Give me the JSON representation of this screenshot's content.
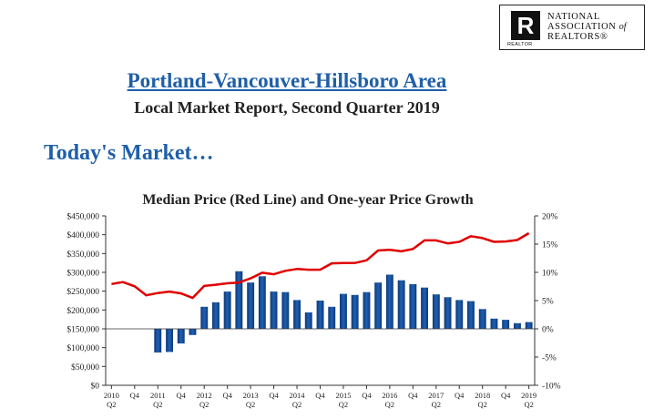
{
  "logo": {
    "line1": "NATIONAL",
    "line2": "ASSOCIATION",
    "of": "of",
    "line3": "REALTORS",
    "mark": "R",
    "sub": "REALTOR"
  },
  "header": {
    "title": "Portland-Vancouver-Hillsboro Area",
    "subtitle": "Local Market Report, Second Quarter 2019"
  },
  "section_title": "Today's Market…",
  "colors": {
    "accent": "#1f5fa8",
    "bar": "#1f5fb4",
    "line": "#e00000"
  },
  "chart_data": {
    "type": "bar",
    "title": "Median Price (Red Line) and One-year Price Growth",
    "quarters": [
      "2010 Q2",
      "2010 Q3",
      "2010 Q4",
      "2011 Q1",
      "2011 Q2",
      "2011 Q3",
      "2011 Q4",
      "2012 Q1",
      "2012 Q2",
      "2012 Q3",
      "2012 Q4",
      "2013 Q1",
      "2013 Q2",
      "2013 Q3",
      "2013 Q4",
      "2014 Q1",
      "2014 Q2",
      "2014 Q3",
      "2014 Q4",
      "2015 Q1",
      "2015 Q2",
      "2015 Q3",
      "2015 Q4",
      "2016 Q1",
      "2016 Q2",
      "2016 Q3",
      "2016 Q4",
      "2017 Q1",
      "2017 Q2",
      "2017 Q3",
      "2017 Q4",
      "2018 Q1",
      "2018 Q2",
      "2018 Q3",
      "2018 Q4",
      "2019 Q1",
      "2019 Q2"
    ],
    "x_tick_labels": [
      {
        "top": "2010",
        "bottom": "Q2"
      },
      {
        "top": "Q4",
        "bottom": ""
      },
      {
        "top": "2011",
        "bottom": "Q2"
      },
      {
        "top": "Q4",
        "bottom": ""
      },
      {
        "top": "2012",
        "bottom": "Q2"
      },
      {
        "top": "Q4",
        "bottom": ""
      },
      {
        "top": "2013",
        "bottom": "Q2"
      },
      {
        "top": "Q4",
        "bottom": ""
      },
      {
        "top": "2014",
        "bottom": "Q2"
      },
      {
        "top": "Q4",
        "bottom": ""
      },
      {
        "top": "2015",
        "bottom": "Q2"
      },
      {
        "top": "Q4",
        "bottom": ""
      },
      {
        "top": "2016",
        "bottom": "Q2"
      },
      {
        "top": "Q4",
        "bottom": ""
      },
      {
        "top": "2017",
        "bottom": "Q2"
      },
      {
        "top": "Q4",
        "bottom": ""
      },
      {
        "top": "2018",
        "bottom": "Q2"
      },
      {
        "top": "Q4",
        "bottom": ""
      },
      {
        "top": "2019",
        "bottom": "Q2"
      }
    ],
    "series": [
      {
        "name": "One-year Price Growth",
        "axis": "right",
        "unit": "%",
        "values": [
          null,
          null,
          null,
          null,
          -4.2,
          -4.1,
          -2.6,
          -1.1,
          3.9,
          4.7,
          6.6,
          10.2,
          8.2,
          9.3,
          6.6,
          6.5,
          5.1,
          2.9,
          5.0,
          3.9,
          6.2,
          6.0,
          6.5,
          8.2,
          9.6,
          8.6,
          7.9,
          7.3,
          6.1,
          5.6,
          5.1,
          4.9,
          3.5,
          1.8,
          1.6,
          1.0,
          1.2
        ]
      },
      {
        "name": "Median Price (Red Line)",
        "axis": "left",
        "unit": "$",
        "values": [
          269000,
          274000,
          263000,
          239000,
          245000,
          249000,
          244000,
          232000,
          264000,
          267000,
          271000,
          273000,
          284000,
          299000,
          295000,
          304000,
          309000,
          307000,
          307000,
          324000,
          325000,
          325000,
          332000,
          358000,
          360000,
          356000,
          362000,
          385000,
          385000,
          377000,
          381000,
          396000,
          391000,
          381000,
          382000,
          386000,
          404000
        ]
      }
    ],
    "y_left": {
      "min": 0,
      "max": 450000,
      "ticks": [
        "$0",
        "$50,000",
        "$100,000",
        "$150,000",
        "$200,000",
        "$250,000",
        "$300,000",
        "$350,000",
        "$400,000",
        "$450,000"
      ]
    },
    "y_right": {
      "min": -10,
      "max": 20,
      "ticks": [
        "-10%",
        "-5%",
        "0%",
        "5%",
        "10%",
        "15%",
        "20%"
      ]
    },
    "grid": false,
    "legend": "none"
  }
}
